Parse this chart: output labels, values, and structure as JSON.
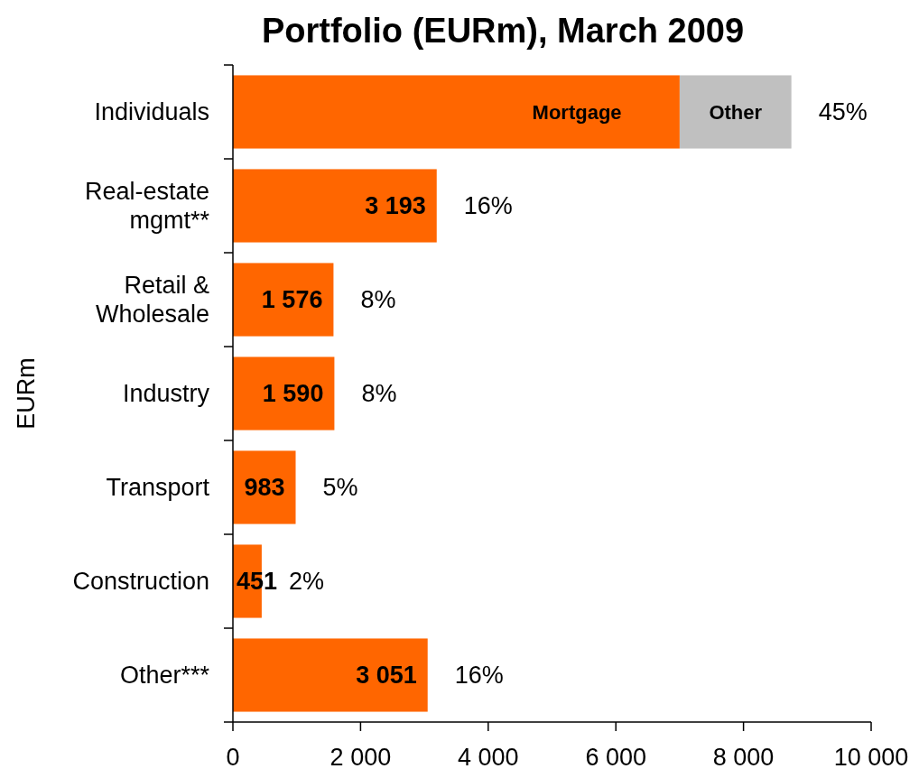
{
  "chart_data": {
    "type": "bar",
    "orientation": "horizontal",
    "stacked": true,
    "title": "Portfolio (EURm), March 2009",
    "ylabel": "EURm",
    "categories": [
      "Individuals",
      "Real-estate mgmt**",
      "Retail & Wholesale",
      "Industry",
      "Transport",
      "Construction",
      "Other***"
    ],
    "series": [
      {
        "name": "Mortgage",
        "color": "#ff6600",
        "values": [
          7000,
          3193,
          1576,
          1590,
          983,
          451,
          3051
        ],
        "value_labels": [
          null,
          "3 193",
          "1 576",
          "1 590",
          "983",
          "451",
          "3 051"
        ]
      },
      {
        "name": "Other",
        "color": "#c0c0c0",
        "values": [
          1750,
          null,
          null,
          null,
          null,
          null,
          null
        ]
      }
    ],
    "xlim": [
      0,
      10000
    ],
    "xticks": [
      0,
      {
        "value": 2000,
        "label": "2 000"
      },
      {
        "value": 4000,
        "label": "4 000"
      },
      {
        "value": 6000,
        "label": "6 000"
      },
      {
        "value": 8000,
        "label": "8 000"
      },
      {
        "value": 10000,
        "label": "10 000"
      }
    ],
    "annotations": [
      "45%",
      "16%",
      "8%",
      "8%",
      "5%",
      "2%",
      "16%"
    ],
    "legend": false,
    "grid": false
  }
}
